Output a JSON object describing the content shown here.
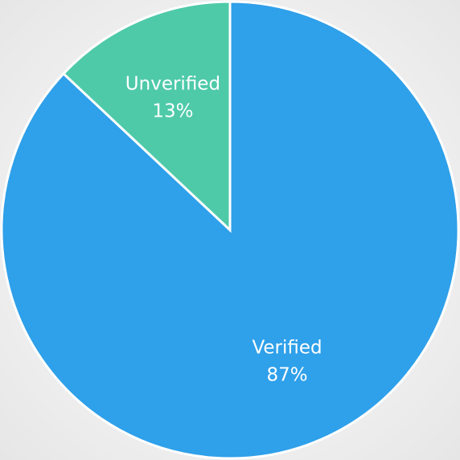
{
  "chart_data": {
    "type": "pie",
    "categories": [
      "Verified",
      "Unverified"
    ],
    "values": [
      87,
      13
    ],
    "value_labels": [
      "87%",
      "13%"
    ],
    "colors": [
      "#2fa0ea",
      "#4ecaa9"
    ]
  }
}
